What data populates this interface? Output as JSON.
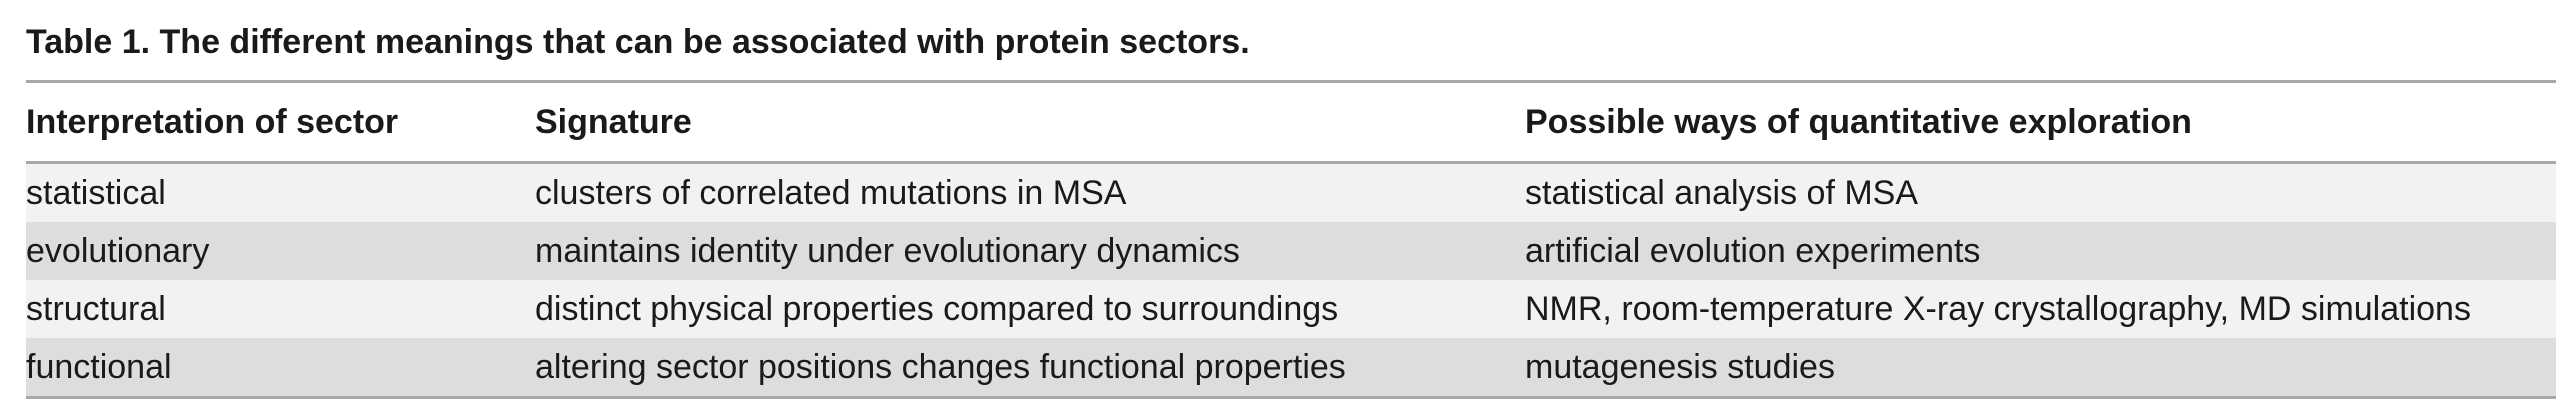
{
  "caption": "Table 1. The different meanings that can be associated with protein sectors.",
  "table": {
    "headers": [
      "Interpretation of sector",
      "Signature",
      "Possible ways of quantitative exploration"
    ],
    "rows": [
      [
        "statistical",
        "clusters of correlated mutations in MSA",
        "statistical analysis of MSA"
      ],
      [
        "evolutionary",
        "maintains identity under evolutionary dynamics",
        "artificial evolution experiments"
      ],
      [
        "structural",
        "distinct physical properties compared to surroundings",
        "NMR, room-temperature X-ray crystallography, MD simulations"
      ],
      [
        "functional",
        "altering sector positions changes functional properties",
        "mutagenesis studies"
      ]
    ]
  }
}
